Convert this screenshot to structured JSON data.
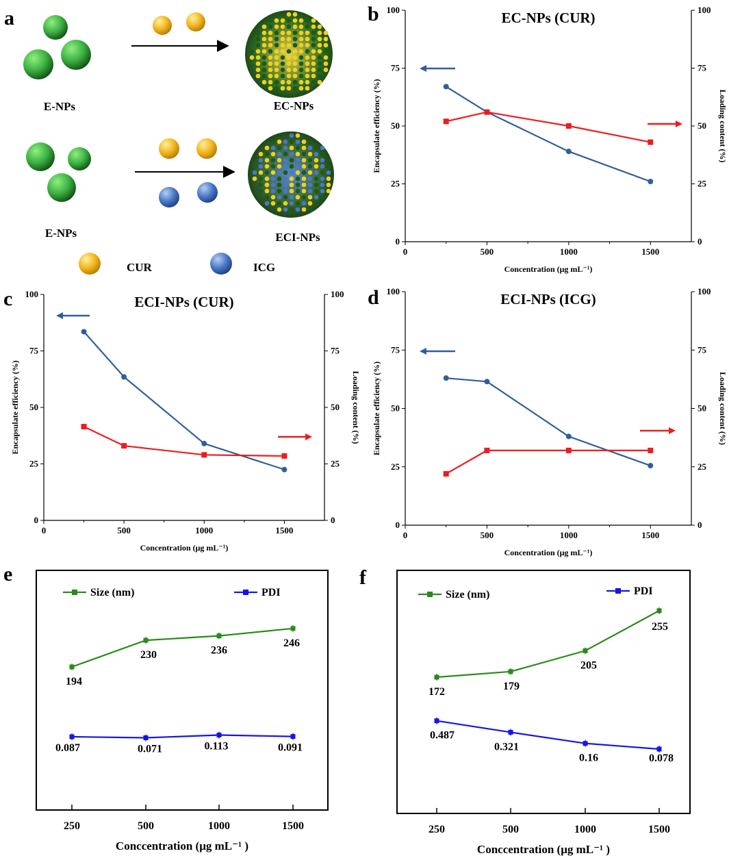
{
  "panel_a": {
    "label": "a",
    "row1_left": "E-NPs",
    "row1_right": "EC-NPs",
    "row2_left": "E-NPs",
    "row2_right": "ECI-NPs",
    "legend_cur": "CUR",
    "legend_icg": "ICG",
    "colors": {
      "np": "#3cb043",
      "cur": "#f2b61c",
      "icg": "#4a78c8"
    }
  },
  "chart_data": [
    {
      "panel": "b",
      "type": "line",
      "title": "EC-NPs (CUR)",
      "xlabel": "Concentration (μg mL⁻¹)",
      "ylabel_left": "Encapsulate efficiency (%)",
      "ylabel_right": "Loading content (%)",
      "x": [
        250,
        500,
        1000,
        1500
      ],
      "xlim": [
        0,
        1750
      ],
      "ylim": [
        0,
        100
      ],
      "xticks": [
        0,
        500,
        1000,
        1500
      ],
      "yticks": [
        0,
        25,
        50,
        75,
        100
      ],
      "series": [
        {
          "name": "Encapsulate efficiency",
          "axis": "left",
          "color": "#2f5f9a",
          "marker": "circle",
          "values": [
            67,
            56,
            39,
            26
          ]
        },
        {
          "name": "Loading content",
          "axis": "right",
          "color": "#ee1c1c",
          "marker": "square",
          "values": [
            52,
            56,
            50,
            43
          ]
        }
      ]
    },
    {
      "panel": "c",
      "type": "line",
      "title": "ECI-NPs (CUR)",
      "xlabel": "Concentration (μg mL⁻¹)",
      "ylabel_left": "Encapsulate efficiency (%)",
      "ylabel_right": "Loading content (%)",
      "x": [
        250,
        500,
        1000,
        1500
      ],
      "xlim": [
        0,
        1750
      ],
      "ylim": [
        0,
        100
      ],
      "xticks": [
        0,
        500,
        1000,
        1500
      ],
      "yticks": [
        0,
        25,
        50,
        75,
        100
      ],
      "series": [
        {
          "name": "Encapsulate efficiency",
          "axis": "left",
          "color": "#2f5f9a",
          "marker": "circle",
          "values": [
            83.5,
            63.5,
            34,
            22.5
          ]
        },
        {
          "name": "Loading content",
          "axis": "right",
          "color": "#ee1c1c",
          "marker": "square",
          "values": [
            41.5,
            33,
            29,
            28.5
          ]
        }
      ]
    },
    {
      "panel": "d",
      "type": "line",
      "title": "ECI-NPs (ICG)",
      "xlabel": "Concentration (μg mL⁻¹)",
      "ylabel_left": "Encapsulate efficiency (%)",
      "ylabel_right": "Loading content (%)",
      "x": [
        250,
        500,
        1000,
        1500
      ],
      "xlim": [
        0,
        1750
      ],
      "ylim": [
        0,
        100
      ],
      "xticks": [
        0,
        500,
        1000,
        1500
      ],
      "yticks": [
        0,
        25,
        50,
        75,
        100
      ],
      "series": [
        {
          "name": "Encapsulate efficiency",
          "axis": "left",
          "color": "#2f5f9a",
          "marker": "circle",
          "values": [
            63,
            61.5,
            38,
            25.5
          ]
        },
        {
          "name": "Loading content",
          "axis": "right",
          "color": "#ee1c1c",
          "marker": "square",
          "values": [
            22,
            32,
            32,
            32
          ]
        }
      ]
    },
    {
      "panel": "e",
      "type": "line",
      "title": "",
      "xlabel": "Conccentration (μg mL⁻¹ )",
      "categories": [
        "250",
        "500",
        "1000",
        "1500"
      ],
      "series": [
        {
          "name": "Size (nm)",
          "color": "#2a8a1a",
          "marker": "square",
          "values": [
            194,
            230,
            236,
            246
          ],
          "labels": [
            "194",
            "230",
            "236",
            "246"
          ]
        },
        {
          "name": "PDI",
          "color": "#1515e6",
          "marker": "square",
          "values": [
            0.087,
            0.071,
            0.113,
            0.091
          ],
          "labels": [
            "0.087",
            "0.071",
            "0.113",
            "0.091"
          ]
        }
      ]
    },
    {
      "panel": "f",
      "type": "line",
      "title": "",
      "xlabel": "Conccentration (μg mL⁻¹ )",
      "categories": [
        "250",
        "500",
        "1000",
        "1500"
      ],
      "series": [
        {
          "name": "Size (nm)",
          "color": "#2a8a1a",
          "marker": "square",
          "values": [
            172,
            179,
            205,
            255
          ],
          "labels": [
            "172",
            "179",
            "205",
            "255"
          ]
        },
        {
          "name": "PDI",
          "color": "#1515e6",
          "marker": "square",
          "values": [
            0.487,
            0.321,
            0.16,
            0.078
          ],
          "labels": [
            "0.487",
            "0.321",
            "0.16",
            "0.078"
          ]
        }
      ]
    }
  ]
}
